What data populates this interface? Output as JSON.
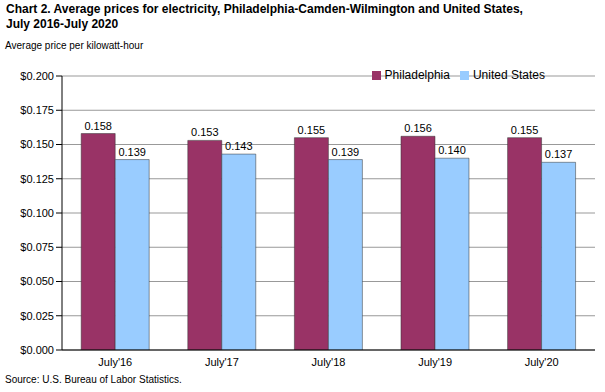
{
  "chart_data": {
    "type": "bar",
    "title": "Chart 2. Average prices for electricity, Philadelphia-Camden-Wilmington and United States, July 2016-July 2020",
    "y_label": "Average price per kilowatt-hour",
    "source": "Source: U.S. Bureau of Labor Statistics.",
    "categories": [
      "July'16",
      "July'17",
      "July'18",
      "July'19",
      "July'20"
    ],
    "series": [
      {
        "name": "Philadelphia",
        "color": "#993366",
        "values": [
          0.158,
          0.153,
          0.155,
          0.156,
          0.155
        ],
        "value_labels": [
          "0.158",
          "0.153",
          "0.155",
          "0.156",
          "0.155"
        ]
      },
      {
        "name": "United States",
        "color": "#99ccff",
        "values": [
          0.139,
          0.143,
          0.139,
          0.14,
          0.137
        ],
        "value_labels": [
          "0.139",
          "0.143",
          "0.139",
          "0.140",
          "0.137"
        ]
      }
    ],
    "ylim": [
      0,
      0.2
    ],
    "yticks": [
      {
        "value": 0,
        "label": "$0.000"
      },
      {
        "value": 0.025,
        "label": "$0.025"
      },
      {
        "value": 0.05,
        "label": "$0.050"
      },
      {
        "value": 0.075,
        "label": "$0.075"
      },
      {
        "value": 0.1,
        "label": "$0.100"
      },
      {
        "value": 0.125,
        "label": "$0.125"
      },
      {
        "value": 0.15,
        "label": "$0.150"
      },
      {
        "value": 0.175,
        "label": "$0.175"
      },
      {
        "value": 0.2,
        "label": "$0.200"
      }
    ],
    "grid": true,
    "legend": "top right",
    "data_labels": true
  }
}
